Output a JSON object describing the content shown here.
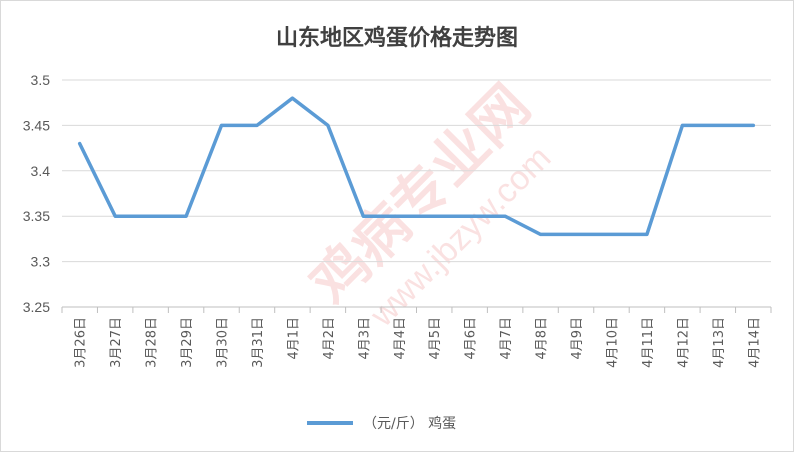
{
  "chart_data": {
    "type": "line",
    "title": "山东地区鸡蛋价格走势图",
    "categories": [
      "3月26日",
      "3月27日",
      "3月28日",
      "3月29日",
      "3月30日",
      "3月31日",
      "4月1日",
      "4月2日",
      "4月3日",
      "4月4日",
      "4月5日",
      "4月6日",
      "4月7日",
      "4月8日",
      "4月9日",
      "4月10日",
      "4月11日",
      "4月12日",
      "4月13日",
      "4月14日"
    ],
    "series": [
      {
        "name": "（元/斤） 鸡蛋",
        "values": [
          3.43,
          3.35,
          3.35,
          3.35,
          3.45,
          3.45,
          3.48,
          3.45,
          3.35,
          3.35,
          3.35,
          3.35,
          3.35,
          3.33,
          3.33,
          3.33,
          3.33,
          3.45,
          3.45,
          3.45
        ]
      }
    ],
    "ylim": [
      3.25,
      3.5
    ],
    "yticks": [
      "3.5",
      "3.45",
      "3.4",
      "3.35",
      "3.3",
      "3.25"
    ],
    "grid": true,
    "legend_position": "bottom",
    "colors": {
      "series": "#5b9bd5",
      "grid": "#d9d9d9",
      "text": "#595959",
      "title": "#404040"
    },
    "watermark_text": [
      "鸡病专业网",
      "www.jbzyw.com"
    ]
  }
}
